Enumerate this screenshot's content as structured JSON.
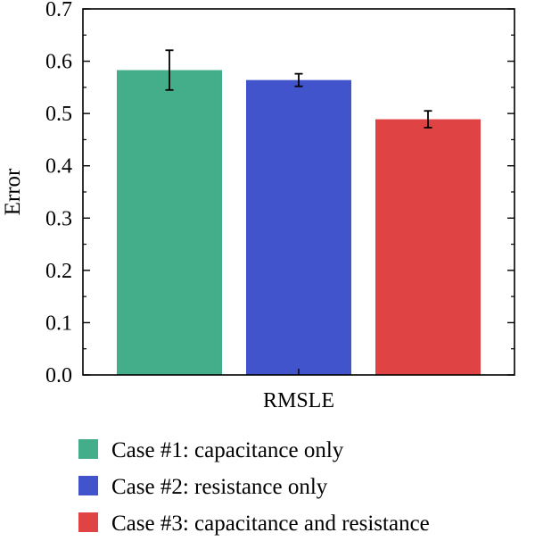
{
  "chart_data": {
    "type": "bar",
    "categories": [
      "RMSLE"
    ],
    "series": [
      {
        "name": "Case #1: capacitance only",
        "values": [
          0.583
        ],
        "errors": [
          0.038
        ],
        "color": "#44AE8B"
      },
      {
        "name": "Case #2: resistance only",
        "values": [
          0.564
        ],
        "errors": [
          0.012
        ],
        "color": "#4254CC"
      },
      {
        "name": "Case #3: capacitance and resistance",
        "values": [
          0.489
        ],
        "errors": [
          0.016
        ],
        "color": "#DF4343"
      }
    ],
    "title": "",
    "xlabel": "",
    "ylabel": "Error",
    "ylim": [
      0,
      0.7
    ],
    "yticks": [
      "0.0",
      "0.1",
      "0.2",
      "0.3",
      "0.4",
      "0.5",
      "0.6",
      "0.7"
    ],
    "grid": false,
    "legend_position": "bottom"
  }
}
